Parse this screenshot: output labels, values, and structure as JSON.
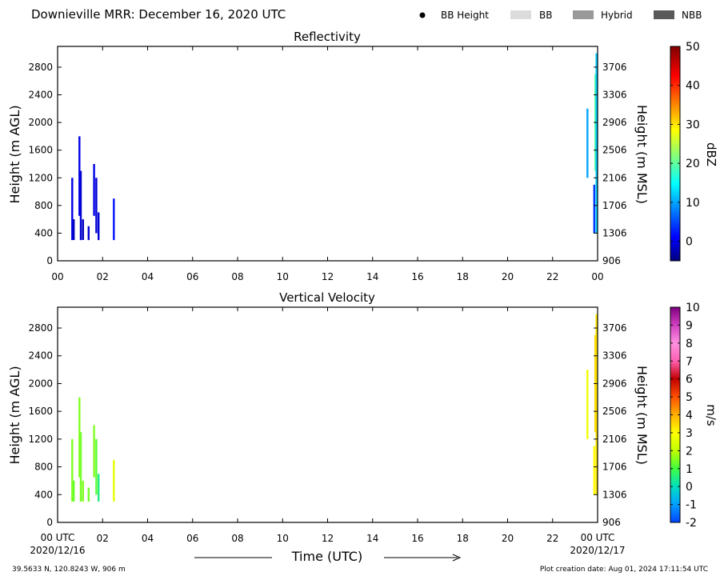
{
  "header": {
    "title": "Downieville MRR:  December 16, 2020 UTC",
    "legend": [
      {
        "label": "BB Height",
        "symbol": "dot",
        "color": "#000000"
      },
      {
        "label": "BB",
        "symbol": "box",
        "color": "#dcdcdc"
      },
      {
        "label": "Hybrid",
        "symbol": "box",
        "color": "#999999"
      },
      {
        "label": "NBB",
        "symbol": "box",
        "color": "#595959"
      }
    ]
  },
  "footer": {
    "coords": "39.5633 N, 120.8243 W, 906 m",
    "creation": "Plot creation date: Aug 01, 2024 17:11:54 UTC",
    "xlabel": "Time (UTC)",
    "start_label": "00 UTC",
    "start_date": "2020/12/16",
    "end_label": "00 UTC",
    "end_date": "2020/12/17"
  },
  "chart_data": [
    {
      "type": "heatmap",
      "title": "Reflectivity",
      "ylabel": "Height (m AGL)",
      "ylabel_right": "Height (m MSL)",
      "colorbar_label": "dBZ",
      "xlim": [
        0,
        24
      ],
      "ylim": [
        0,
        3100
      ],
      "x_ticks": [
        "00",
        "02",
        "04",
        "06",
        "08",
        "10",
        "12",
        "14",
        "16",
        "18",
        "20",
        "22",
        "00"
      ],
      "y_ticks": [
        0,
        400,
        800,
        1200,
        1600,
        2000,
        2400,
        2800
      ],
      "y_ticks_right": [
        "906",
        "1306",
        "1706",
        "2106",
        "2506",
        "2906",
        "3306",
        "3706"
      ],
      "colorbar": {
        "range": [
          -5,
          50
        ],
        "ticks": [
          0,
          10,
          20,
          30,
          40,
          50
        ],
        "colormap": "jet"
      },
      "streaks": [
        {
          "time": 0.65,
          "bottom": 300,
          "top": 1200,
          "value": 0
        },
        {
          "time": 0.72,
          "bottom": 300,
          "top": 600,
          "value": -2
        },
        {
          "time": 0.97,
          "bottom": 650,
          "top": 1800,
          "value": 0
        },
        {
          "time": 1.03,
          "bottom": 300,
          "top": 1300,
          "value": -1
        },
        {
          "time": 1.13,
          "bottom": 300,
          "top": 600,
          "value": -2
        },
        {
          "time": 1.38,
          "bottom": 300,
          "top": 500,
          "value": -1
        },
        {
          "time": 1.62,
          "bottom": 650,
          "top": 1400,
          "value": 0
        },
        {
          "time": 1.72,
          "bottom": 400,
          "top": 1200,
          "value": -1
        },
        {
          "time": 1.82,
          "bottom": 300,
          "top": 700,
          "value": -1
        },
        {
          "time": 2.5,
          "bottom": 300,
          "top": 900,
          "value": 2
        },
        {
          "time": 23.55,
          "bottom": 1200,
          "top": 2200,
          "value": 10
        },
        {
          "time": 23.85,
          "bottom": 400,
          "top": 1100,
          "value": 4
        },
        {
          "time": 23.9,
          "bottom": 1300,
          "top": 2700,
          "value": 20
        },
        {
          "time": 23.95,
          "bottom": 400,
          "top": 3000,
          "value": 12
        }
      ]
    },
    {
      "type": "heatmap",
      "title": "Vertical Velocity",
      "ylabel": "Height (m AGL)",
      "ylabel_right": "Height (m MSL)",
      "colorbar_label": "m/s",
      "xlim": [
        0,
        24
      ],
      "ylim": [
        0,
        3100
      ],
      "x_ticks": [
        "",
        "02",
        "04",
        "06",
        "08",
        "10",
        "12",
        "14",
        "16",
        "18",
        "20",
        "22",
        ""
      ],
      "y_ticks": [
        0,
        400,
        800,
        1200,
        1600,
        2000,
        2400,
        2800
      ],
      "y_ticks_right": [
        "906",
        "1306",
        "1706",
        "2106",
        "2506",
        "2906",
        "3306",
        "3706"
      ],
      "colorbar": {
        "range": [
          -2,
          10
        ],
        "ticks": [
          -2,
          -1,
          0,
          1,
          2,
          3,
          4,
          5,
          6,
          7,
          8,
          9,
          10
        ],
        "colormap": "velocity"
      },
      "streaks": [
        {
          "time": 0.65,
          "bottom": 300,
          "top": 1200,
          "value": 1.5
        },
        {
          "time": 0.72,
          "bottom": 300,
          "top": 600,
          "value": 1.3
        },
        {
          "time": 0.97,
          "bottom": 650,
          "top": 1800,
          "value": 1.5
        },
        {
          "time": 1.03,
          "bottom": 300,
          "top": 1300,
          "value": 1.4
        },
        {
          "time": 1.13,
          "bottom": 300,
          "top": 600,
          "value": 1.5
        },
        {
          "time": 1.38,
          "bottom": 300,
          "top": 500,
          "value": 1.4
        },
        {
          "time": 1.62,
          "bottom": 650,
          "top": 1400,
          "value": 1.5
        },
        {
          "time": 1.72,
          "bottom": 400,
          "top": 1200,
          "value": 1.2
        },
        {
          "time": 1.82,
          "bottom": 300,
          "top": 700,
          "value": 0.5
        },
        {
          "time": 2.5,
          "bottom": 300,
          "top": 900,
          "value": 2.6
        },
        {
          "time": 23.55,
          "bottom": 1200,
          "top": 2200,
          "value": 2.8
        },
        {
          "time": 23.85,
          "bottom": 400,
          "top": 1100,
          "value": 3.0
        },
        {
          "time": 23.9,
          "bottom": 1300,
          "top": 2700,
          "value": 3.6
        },
        {
          "time": 23.95,
          "bottom": 400,
          "top": 3000,
          "value": 3.3
        }
      ]
    }
  ]
}
